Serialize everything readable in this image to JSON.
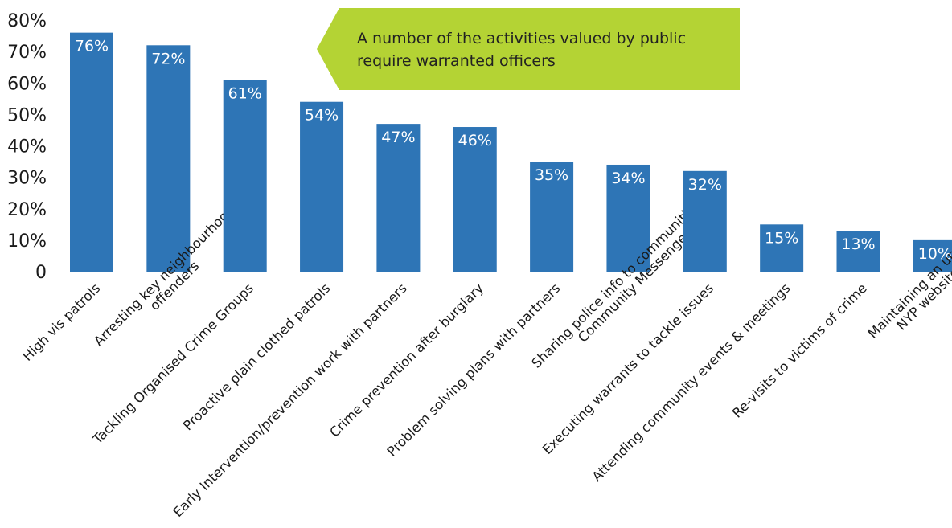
{
  "chart_data": {
    "type": "bar",
    "categories": [
      [
        "High vis patrols"
      ],
      [
        "Arresting key neighbourhood",
        "offenders"
      ],
      [
        "Tackling Organised Crime Groups"
      ],
      [
        "Proactive plain clothed patrols"
      ],
      [
        "Early Intervention/prevention work with partners"
      ],
      [
        "Crime prevention after burglary"
      ],
      [
        "Problem solving plans with partners"
      ],
      [
        "Sharing police info to communities via",
        "Community Messenger"
      ],
      [
        "Executing warrants to tackle issues"
      ],
      [
        "Attending community events & meetings"
      ],
      [
        "Re-visits to victims of crime"
      ],
      [
        "Maintaining an up to date",
        "NYP website page"
      ]
    ],
    "values": [
      76,
      72,
      61,
      54,
      47,
      46,
      35,
      34,
      32,
      15,
      13,
      10
    ],
    "data_labels": [
      "76%",
      "72%",
      "61%",
      "54%",
      "47%",
      "46%",
      "35%",
      "34%",
      "32%",
      "15%",
      "13%",
      "10%"
    ],
    "y_ticks": [
      {
        "value": 0,
        "label": "0"
      },
      {
        "value": 10,
        "label": "10%"
      },
      {
        "value": 20,
        "label": "20%"
      },
      {
        "value": 30,
        "label": "30%"
      },
      {
        "value": 40,
        "label": "40%"
      },
      {
        "value": 50,
        "label": "50%"
      },
      {
        "value": 60,
        "label": "60%"
      },
      {
        "value": 70,
        "label": "70%"
      },
      {
        "value": 80,
        "label": "80%"
      }
    ],
    "ylim": [
      0,
      80
    ],
    "grid": false,
    "bar_color": "#2E75B6",
    "title": "",
    "xlabel": "",
    "ylabel": ""
  },
  "callout": {
    "text": "A number of the activities valued by public require warranted officers",
    "color": "#B4D334"
  }
}
